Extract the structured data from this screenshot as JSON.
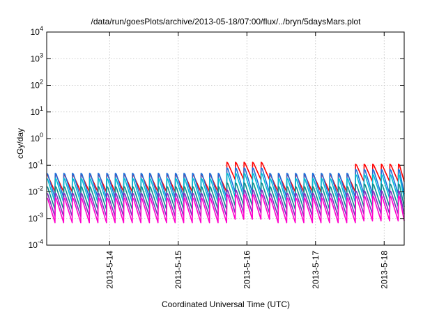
{
  "chart_data": {
    "type": "line",
    "title": "/data/run/goesPlots/archive/2013-05-18/07:00/flux/../bryn/5daysMars.plot",
    "xlabel": "Coordinated Universal Time (UTC)",
    "ylabel": "cGy/day",
    "y_scale": "log",
    "ylim": [
      0.0001,
      10000
    ],
    "xlim": [
      "2013-05-13 02:00",
      "2013-05-18 07:00"
    ],
    "grid": true,
    "y_ticks": [
      {
        "base": "10",
        "exp": "-4"
      },
      {
        "base": "10",
        "exp": "-3"
      },
      {
        "base": "10",
        "exp": "-2"
      },
      {
        "base": "10",
        "exp": "-1"
      },
      {
        "base": "10",
        "exp": "0"
      },
      {
        "base": "10",
        "exp": "1"
      },
      {
        "base": "10",
        "exp": "2"
      },
      {
        "base": "10",
        "exp": "3"
      },
      {
        "base": "10",
        "exp": "4"
      }
    ],
    "x_ticks": [
      "2013-5-14",
      "2013-5-15",
      "2013-5-16",
      "2013-5-17",
      "2013-5-18"
    ],
    "cycle_hours": 3,
    "series": [
      {
        "color": "#ff0000",
        "peak_before": 0.045,
        "peak_event": 0.13,
        "trough": 0.01,
        "event_start": "2013-05-15 17:00",
        "event_end": "2013-05-16 05:00",
        "event2_start": "2013-05-17 12:00",
        "event2_peak": 0.11
      },
      {
        "color": "#1e6fdc",
        "peak_before": 0.05,
        "peak_event": 0.08,
        "trough": 0.006,
        "event_start": "2013-05-15 17:00",
        "event_end": "2013-05-16 05:00",
        "event2_start": "2013-05-17 12:00",
        "event2_peak": 0.07
      },
      {
        "color": "#00bcd4",
        "peak_before": 0.032,
        "peak_event": 0.05,
        "trough": 0.004,
        "event_start": "2013-05-15 17:00",
        "event_end": "2013-05-16 05:00",
        "event2_start": "2013-05-17 12:00",
        "event2_peak": 0.045
      },
      {
        "color": "#0a8f8f",
        "peak_before": 0.016,
        "peak_event": 0.022,
        "trough": 0.0022,
        "event_start": "2013-05-15 17:00",
        "event_end": "2013-05-16 05:00",
        "event2_start": "2013-05-17 12:00",
        "event2_peak": 0.02
      },
      {
        "color": "#7b2fbf",
        "peak_before": 0.009,
        "peak_event": 0.012,
        "trough": 0.0012,
        "event_start": "2013-05-15 17:00",
        "event_end": "2013-05-16 05:00",
        "event2_start": "2013-05-17 12:00",
        "event2_peak": 0.011
      },
      {
        "color": "#ff00cc",
        "peak_before": 0.006,
        "peak_event": 0.008,
        "trough": 0.0007,
        "event_start": "2013-05-15 17:00",
        "event_end": "2013-05-16 05:00",
        "event2_start": "2013-05-17 12:00",
        "event2_peak": 0.007
      }
    ]
  }
}
